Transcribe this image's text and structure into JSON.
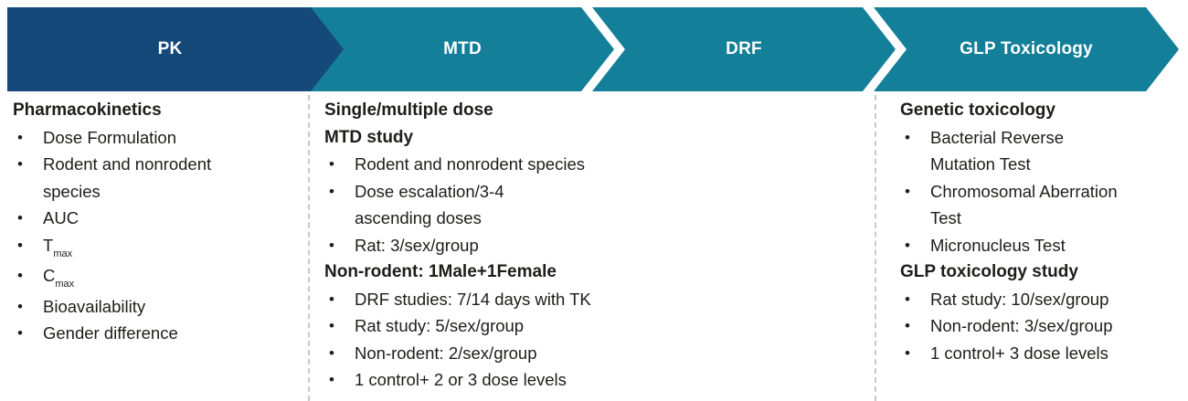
{
  "banner": {
    "chevrons": [
      {
        "label": "PK"
      },
      {
        "label": "MTD"
      },
      {
        "label": "DRF"
      },
      {
        "label": "GLP Toxicology"
      }
    ]
  },
  "colors": {
    "pk_chevron_fill": "#14497A",
    "stage_chevron_fill": "#137F99",
    "chevron_label_text": "#FFFFFF",
    "body_text": "#1D1D1B",
    "divider": "#C9C9C9"
  },
  "sections": [
    {
      "blocks": [
        {
          "type": "heading",
          "text": "Pharmacokinetics"
        },
        {
          "type": "bullet",
          "text": "Dose Formulation"
        },
        {
          "type": "bullet",
          "text": "Rodent and nonrodent\nspecies"
        },
        {
          "type": "bullet",
          "text": "AUC"
        },
        {
          "type": "bullet_sub",
          "base": "T",
          "sub": "max"
        },
        {
          "type": "bullet_sub",
          "base": "C",
          "sub": "max"
        },
        {
          "type": "bullet",
          "text": "Bioavailability"
        },
        {
          "type": "bullet",
          "text": "Gender difference"
        }
      ]
    },
    {
      "blocks": [
        {
          "type": "heading",
          "text": "Single/multiple dose\nMTD study"
        },
        {
          "type": "bullet",
          "text": "Rodent and nonrodent species"
        },
        {
          "type": "bullet",
          "text": "Dose escalation/3-4\nascending doses"
        },
        {
          "type": "bullet",
          "text": "Rat: 3/sex/group"
        },
        {
          "type": "heading",
          "text": "Non-rodent: 1Male+1Female"
        },
        {
          "type": "bullet",
          "text": "DRF studies: 7/14 days with TK"
        },
        {
          "type": "bullet",
          "text": "Rat study: 5/sex/group"
        },
        {
          "type": "bullet",
          "text": "Non-rodent: 2/sex/group"
        },
        {
          "type": "bullet",
          "text": "1 control+ 2 or 3 dose levels"
        }
      ]
    },
    {
      "blocks": [
        {
          "type": "heading",
          "text": "Genetic toxicology"
        },
        {
          "type": "bullet",
          "text": "Bacterial Reverse\nMutation Test"
        },
        {
          "type": "bullet",
          "text": "Chromosomal Aberration\nTest"
        },
        {
          "type": "bullet",
          "text": "Micronucleus Test"
        },
        {
          "type": "heading",
          "text": "GLP toxicology study"
        },
        {
          "type": "bullet",
          "text": "Rat study: 10/sex/group"
        },
        {
          "type": "bullet",
          "text": "Non-rodent: 3/sex/group"
        },
        {
          "type": "bullet",
          "text": "1 control+ 3 dose levels"
        }
      ]
    }
  ]
}
